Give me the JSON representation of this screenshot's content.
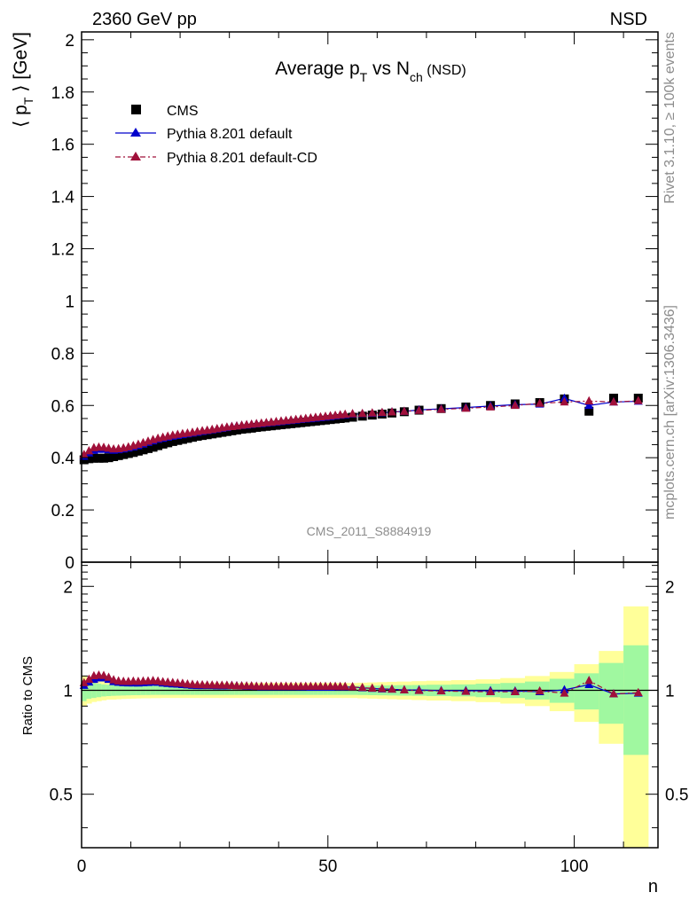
{
  "header": {
    "left": "2360 GeV pp",
    "right": "NSD"
  },
  "side_labels": {
    "rivet": "Rivet 3.1.10, ≥ 100k events",
    "mcplots": "mcplots.cern.ch [arXiv:1306.3436]"
  },
  "colors": {
    "cms": "#000000",
    "pythia_default": "#0000cc",
    "pythia_cd": "#a0103a",
    "band_inner": "#a0f8a0",
    "band_outer": "#ffff99"
  },
  "chart_data": [
    {
      "type": "scatter",
      "panel": "main",
      "title": {
        "main": "Average p",
        "sub1": "T",
        "mid": " vs N",
        "sub2": "ch",
        "tail": " (NSD)"
      },
      "ylabel": {
        "pre": "⟨ p",
        "sub": "T",
        "post": " ⟩ [GeV]"
      },
      "xlabel": "",
      "watermark": "CMS_2011_S8884919",
      "xlim": [
        0,
        117
      ],
      "ylim": [
        0,
        2.03
      ],
      "y_ticks": [
        "0",
        "0.2",
        "0.4",
        "0.6",
        "0.8",
        "1",
        "1.2",
        "1.4",
        "1.6",
        "1.8",
        "2"
      ],
      "legend_position": "top-left",
      "legend": [
        "CMS",
        "Pythia 8.201 default",
        "Pythia 8.201 default-CD"
      ],
      "series": [
        {
          "name": "CMS",
          "marker": "square",
          "x": [
            0.5,
            1.5,
            2.5,
            3.5,
            4.5,
            5.5,
            6.5,
            7.5,
            8.5,
            9.5,
            10.5,
            11.5,
            12.5,
            13.5,
            14.5,
            15.5,
            16.5,
            17.5,
            18.5,
            19.5,
            20.5,
            21.5,
            22.5,
            23.5,
            24.5,
            25.5,
            26.5,
            27.5,
            28.5,
            29.5,
            30.5,
            31.5,
            32.5,
            33.5,
            34.5,
            35.5,
            36.5,
            37.5,
            38.5,
            39.5,
            40.5,
            41.5,
            42.5,
            43.5,
            44.5,
            45.5,
            46.5,
            47.5,
            48.5,
            49.5,
            50.5,
            51.5,
            52.5,
            53.5,
            55,
            57,
            59,
            61,
            63,
            65.5,
            68.5,
            73,
            78,
            83,
            88,
            93,
            98,
            103,
            108,
            113
          ],
          "y": [
            0.392,
            0.396,
            0.398,
            0.398,
            0.398,
            0.4,
            0.404,
            0.408,
            0.412,
            0.416,
            0.42,
            0.425,
            0.43,
            0.435,
            0.44,
            0.446,
            0.452,
            0.457,
            0.462,
            0.466,
            0.47,
            0.474,
            0.478,
            0.482,
            0.485,
            0.488,
            0.491,
            0.494,
            0.497,
            0.5,
            0.503,
            0.506,
            0.509,
            0.511,
            0.513,
            0.516,
            0.518,
            0.52,
            0.522,
            0.524,
            0.526,
            0.528,
            0.53,
            0.532,
            0.534,
            0.536,
            0.538,
            0.54,
            0.542,
            0.544,
            0.546,
            0.548,
            0.55,
            0.552,
            0.555,
            0.559,
            0.563,
            0.567,
            0.571,
            0.576,
            0.582,
            0.588,
            0.594,
            0.6,
            0.606,
            0.611,
            0.625,
            0.578,
            0.628,
            0.628
          ]
        },
        {
          "name": "Pythia 8.201 default",
          "marker": "triangle",
          "x": [
            0.5,
            1.5,
            2.5,
            3.5,
            4.5,
            5.5,
            6.5,
            7.5,
            8.5,
            9.5,
            10.5,
            11.5,
            12.5,
            13.5,
            14.5,
            15.5,
            16.5,
            17.5,
            18.5,
            19.5,
            20.5,
            21.5,
            22.5,
            23.5,
            24.5,
            25.5,
            26.5,
            27.5,
            28.5,
            29.5,
            30.5,
            31.5,
            32.5,
            33.5,
            34.5,
            35.5,
            36.5,
            37.5,
            38.5,
            39.5,
            40.5,
            41.5,
            42.5,
            43.5,
            44.5,
            45.5,
            46.5,
            47.5,
            48.5,
            49.5,
            50.5,
            51.5,
            52.5,
            53.5,
            55,
            57,
            59,
            61,
            63,
            65.5,
            68.5,
            73,
            78,
            83,
            88,
            93,
            98,
            103,
            108,
            113
          ],
          "y": [
            0.405,
            0.418,
            0.428,
            0.432,
            0.432,
            0.43,
            0.428,
            0.43,
            0.433,
            0.437,
            0.441,
            0.446,
            0.452,
            0.458,
            0.464,
            0.47,
            0.474,
            0.478,
            0.482,
            0.485,
            0.488,
            0.491,
            0.494,
            0.497,
            0.5,
            0.503,
            0.506,
            0.509,
            0.512,
            0.515,
            0.519,
            0.521,
            0.523,
            0.525,
            0.527,
            0.529,
            0.53,
            0.532,
            0.534,
            0.536,
            0.538,
            0.54,
            0.542,
            0.544,
            0.546,
            0.548,
            0.549,
            0.551,
            0.553,
            0.555,
            0.557,
            0.56,
            0.562,
            0.564,
            0.567,
            0.568,
            0.57,
            0.572,
            0.575,
            0.577,
            0.583,
            0.587,
            0.592,
            0.598,
            0.603,
            0.605,
            0.627,
            0.6,
            0.613,
            0.616
          ]
        },
        {
          "name": "Pythia 8.201 default-CD",
          "marker": "triangle",
          "x": [
            0.5,
            1.5,
            2.5,
            3.5,
            4.5,
            5.5,
            6.5,
            7.5,
            8.5,
            9.5,
            10.5,
            11.5,
            12.5,
            13.5,
            14.5,
            15.5,
            16.5,
            17.5,
            18.5,
            19.5,
            20.5,
            21.5,
            22.5,
            23.5,
            24.5,
            25.5,
            26.5,
            27.5,
            28.5,
            29.5,
            30.5,
            31.5,
            32.5,
            33.5,
            34.5,
            35.5,
            36.5,
            37.5,
            38.5,
            39.5,
            40.5,
            41.5,
            42.5,
            43.5,
            44.5,
            45.5,
            46.5,
            47.5,
            48.5,
            49.5,
            50.5,
            51.5,
            52.5,
            53.5,
            55,
            57,
            59,
            61,
            63,
            65.5,
            68.5,
            73,
            78,
            83,
            88,
            93,
            98,
            103,
            108,
            113
          ],
          "y": [
            0.412,
            0.426,
            0.438,
            0.44,
            0.439,
            0.436,
            0.433,
            0.434,
            0.437,
            0.441,
            0.446,
            0.451,
            0.457,
            0.463,
            0.469,
            0.474,
            0.478,
            0.482,
            0.486,
            0.489,
            0.492,
            0.494,
            0.497,
            0.5,
            0.503,
            0.505,
            0.508,
            0.511,
            0.514,
            0.517,
            0.519,
            0.521,
            0.524,
            0.526,
            0.528,
            0.53,
            0.532,
            0.534,
            0.536,
            0.538,
            0.54,
            0.542,
            0.544,
            0.546,
            0.548,
            0.55,
            0.552,
            0.554,
            0.556,
            0.558,
            0.56,
            0.562,
            0.564,
            0.566,
            0.568,
            0.569,
            0.571,
            0.573,
            0.575,
            0.577,
            0.581,
            0.585,
            0.589,
            0.594,
            0.6,
            0.608,
            0.613,
            0.617,
            0.613,
            0.618
          ]
        }
      ]
    },
    {
      "type": "line",
      "panel": "ratio",
      "ylabel": "Ratio to CMS",
      "xlabel": "n",
      "xlim": [
        0,
        117
      ],
      "ylim": [
        0.35,
        2.35
      ],
      "x_ticks": [
        "0",
        "50",
        "100"
      ],
      "y_ticks": [
        "0.5",
        "1",
        "2"
      ],
      "bands": {
        "x_edges": [
          0,
          1,
          2,
          3,
          4,
          5,
          6,
          7,
          8,
          9,
          10,
          11,
          12,
          13,
          14,
          15,
          16,
          17,
          18,
          19,
          20,
          21,
          22,
          23,
          24,
          25,
          26,
          27,
          28,
          29,
          30,
          31,
          32,
          33,
          34,
          35,
          36,
          37,
          38,
          39,
          40,
          41,
          42,
          43,
          44,
          45,
          46,
          47,
          48,
          49,
          50,
          51,
          52,
          53,
          54,
          56,
          58,
          60,
          62,
          64,
          67,
          70,
          75,
          80,
          85,
          90,
          95,
          100,
          105,
          110,
          115
        ],
        "inner_half_width": [
          0.07,
          0.055,
          0.05,
          0.045,
          0.04,
          0.038,
          0.036,
          0.035,
          0.034,
          0.033,
          0.032,
          0.032,
          0.031,
          0.031,
          0.03,
          0.03,
          0.03,
          0.03,
          0.03,
          0.03,
          0.03,
          0.03,
          0.03,
          0.03,
          0.03,
          0.03,
          0.03,
          0.03,
          0.03,
          0.03,
          0.03,
          0.03,
          0.03,
          0.03,
          0.03,
          0.03,
          0.03,
          0.03,
          0.03,
          0.03,
          0.03,
          0.03,
          0.03,
          0.03,
          0.03,
          0.03,
          0.03,
          0.03,
          0.03,
          0.03,
          0.03,
          0.03,
          0.03,
          0.03,
          0.03,
          0.031,
          0.032,
          0.033,
          0.034,
          0.035,
          0.036,
          0.038,
          0.04,
          0.045,
          0.05,
          0.06,
          0.08,
          0.12,
          0.2,
          0.35,
          0.55
        ],
        "outer_half_width": [
          0.1,
          0.085,
          0.075,
          0.07,
          0.065,
          0.06,
          0.06,
          0.058,
          0.056,
          0.055,
          0.054,
          0.053,
          0.052,
          0.052,
          0.051,
          0.051,
          0.05,
          0.05,
          0.05,
          0.05,
          0.05,
          0.05,
          0.05,
          0.05,
          0.05,
          0.05,
          0.05,
          0.05,
          0.05,
          0.05,
          0.05,
          0.05,
          0.05,
          0.05,
          0.05,
          0.05,
          0.05,
          0.05,
          0.05,
          0.05,
          0.05,
          0.05,
          0.05,
          0.05,
          0.05,
          0.05,
          0.05,
          0.05,
          0.05,
          0.05,
          0.05,
          0.05,
          0.05,
          0.05,
          0.05,
          0.052,
          0.054,
          0.056,
          0.058,
          0.06,
          0.063,
          0.066,
          0.07,
          0.076,
          0.085,
          0.1,
          0.13,
          0.19,
          0.3,
          0.75,
          1.1
        ]
      },
      "series": [
        {
          "name": "Pythia 8.201 default",
          "x": [
            0.5,
            1.5,
            2.5,
            3.5,
            4.5,
            5.5,
            6.5,
            7.5,
            8.5,
            9.5,
            10.5,
            11.5,
            12.5,
            13.5,
            14.5,
            15.5,
            16.5,
            17.5,
            18.5,
            19.5,
            20.5,
            21.5,
            22.5,
            23.5,
            24.5,
            25.5,
            26.5,
            27.5,
            28.5,
            29.5,
            30.5,
            31.5,
            32.5,
            33.5,
            34.5,
            35.5,
            36.5,
            37.5,
            38.5,
            39.5,
            40.5,
            41.5,
            42.5,
            43.5,
            44.5,
            45.5,
            46.5,
            47.5,
            48.5,
            49.5,
            50.5,
            51.5,
            52.5,
            53.5,
            55,
            57,
            59,
            61,
            63,
            65.5,
            68.5,
            73,
            78,
            83,
            88,
            93,
            98,
            103,
            108,
            113
          ],
          "y": [
            1.033,
            1.056,
            1.075,
            1.085,
            1.085,
            1.075,
            1.059,
            1.054,
            1.051,
            1.05,
            1.05,
            1.049,
            1.051,
            1.053,
            1.055,
            1.054,
            1.049,
            1.046,
            1.043,
            1.041,
            1.038,
            1.036,
            1.033,
            1.031,
            1.031,
            1.031,
            1.031,
            1.03,
            1.03,
            1.03,
            1.032,
            1.03,
            1.028,
            1.027,
            1.027,
            1.025,
            1.023,
            1.023,
            1.023,
            1.023,
            1.023,
            1.023,
            1.023,
            1.023,
            1.022,
            1.022,
            1.02,
            1.02,
            1.02,
            1.02,
            1.02,
            1.022,
            1.022,
            1.022,
            1.022,
            1.016,
            1.012,
            1.009,
            1.007,
            1.002,
            1.002,
            0.998,
            0.997,
            0.997,
            0.995,
            0.99,
            1.003,
            1.038,
            0.976,
            0.981
          ]
        },
        {
          "name": "Pythia 8.201 default-CD",
          "x": [
            0.5,
            1.5,
            2.5,
            3.5,
            4.5,
            5.5,
            6.5,
            7.5,
            8.5,
            9.5,
            10.5,
            11.5,
            12.5,
            13.5,
            14.5,
            15.5,
            16.5,
            17.5,
            18.5,
            19.5,
            20.5,
            21.5,
            22.5,
            23.5,
            24.5,
            25.5,
            26.5,
            27.5,
            28.5,
            29.5,
            30.5,
            31.5,
            32.5,
            33.5,
            34.5,
            35.5,
            36.5,
            37.5,
            38.5,
            39.5,
            40.5,
            41.5,
            42.5,
            43.5,
            44.5,
            45.5,
            46.5,
            47.5,
            48.5,
            49.5,
            50.5,
            51.5,
            52.5,
            53.5,
            55,
            57,
            59,
            61,
            63,
            65.5,
            68.5,
            73,
            78,
            83,
            88,
            93,
            98,
            103,
            108,
            113
          ],
          "y": [
            1.051,
            1.076,
            1.101,
            1.106,
            1.103,
            1.09,
            1.072,
            1.064,
            1.061,
            1.06,
            1.062,
            1.061,
            1.063,
            1.064,
            1.066,
            1.063,
            1.058,
            1.055,
            1.052,
            1.049,
            1.047,
            1.042,
            1.04,
            1.037,
            1.037,
            1.035,
            1.035,
            1.034,
            1.034,
            1.034,
            1.032,
            1.03,
            1.029,
            1.029,
            1.029,
            1.027,
            1.027,
            1.027,
            1.027,
            1.027,
            1.027,
            1.027,
            1.026,
            1.026,
            1.026,
            1.026,
            1.026,
            1.026,
            1.026,
            1.026,
            1.026,
            1.026,
            1.025,
            1.025,
            1.023,
            1.018,
            1.014,
            1.011,
            1.007,
            1.002,
            0.998,
            0.995,
            0.992,
            0.99,
            0.99,
            0.995,
            0.981,
            1.067,
            0.976,
            0.984
          ]
        }
      ]
    }
  ]
}
